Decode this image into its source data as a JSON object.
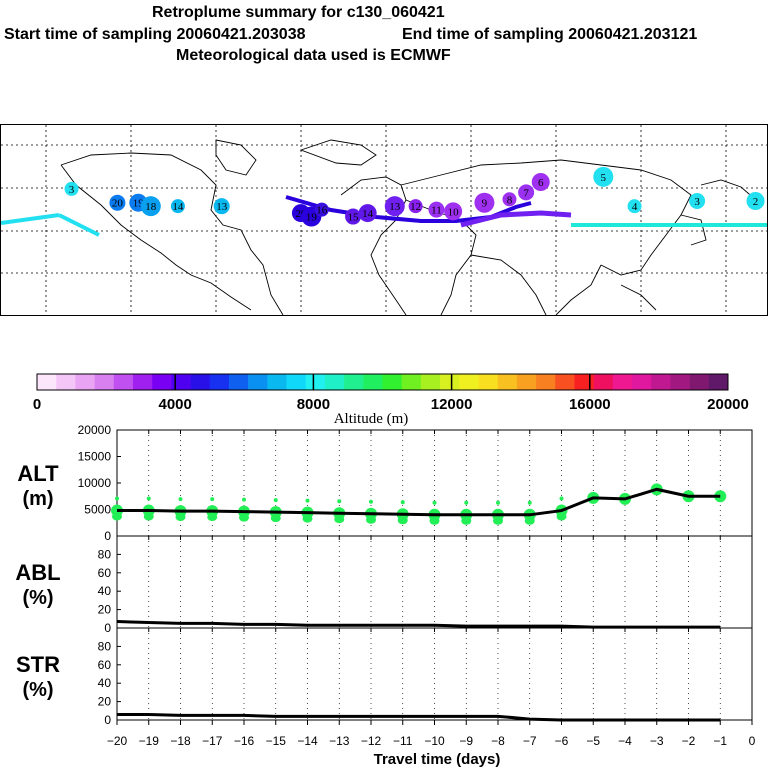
{
  "title": {
    "line1": "Retroplume summary for c130_060421",
    "start_label": "Start time of sampling 20060421.203038",
    "end_label": "End time of sampling 20060421.203121",
    "line3": "Meteorological data used is ECMWF"
  },
  "map": {
    "region": "Northern hemisphere world map with retroplume trajectory",
    "trajectory_main_color": "#4b00ff",
    "trajectory_east_color": "#20e8d8",
    "markers": [
      {
        "label": "3",
        "lon": -150,
        "lat": 38,
        "color": "#22e0f0"
      },
      {
        "label": "20",
        "lon": -128,
        "lat": 30,
        "color": "#0a7cf0"
      },
      {
        "label": "19",
        "lon": -118,
        "lat": 30,
        "color": "#0a7cf0"
      },
      {
        "label": "18",
        "lon": -112,
        "lat": 28,
        "color": "#0aa0f0"
      },
      {
        "label": "14",
        "lon": -99,
        "lat": 28,
        "color": "#0ab8f0"
      },
      {
        "label": "13",
        "lon": -78,
        "lat": 28,
        "color": "#0ab8f0"
      },
      {
        "label": "20",
        "lon": -40,
        "lat": 24,
        "color": "#2a00dd"
      },
      {
        "label": "19",
        "lon": -35,
        "lat": 22,
        "color": "#2a00dd"
      },
      {
        "label": "16",
        "lon": -30,
        "lat": 26,
        "color": "#3a10e0"
      },
      {
        "label": "15",
        "lon": -15,
        "lat": 22,
        "color": "#6018e8"
      },
      {
        "label": "14",
        "lon": -8,
        "lat": 24,
        "color": "#6018e8"
      },
      {
        "label": "13",
        "lon": 5,
        "lat": 28,
        "color": "#7020f0"
      },
      {
        "label": "12",
        "lon": 15,
        "lat": 28,
        "color": "#8a20f0"
      },
      {
        "label": "11",
        "lon": 25,
        "lat": 26,
        "color": "#9a30f0"
      },
      {
        "label": "10",
        "lon": 33,
        "lat": 25,
        "color": "#a030f0"
      },
      {
        "label": "9",
        "lon": 48,
        "lat": 30,
        "color": "#a030f0"
      },
      {
        "label": "8",
        "lon": 60,
        "lat": 32,
        "color": "#a030f0"
      },
      {
        "label": "7",
        "lon": 68,
        "lat": 36,
        "color": "#9a30f0"
      },
      {
        "label": "6",
        "lon": 75,
        "lat": 42,
        "color": "#a030f0"
      },
      {
        "label": "5",
        "lon": 105,
        "lat": 45,
        "color": "#22e0f0"
      },
      {
        "label": "4",
        "lon": 120,
        "lat": 28,
        "color": "#22e0f0"
      },
      {
        "label": "3",
        "lon": 150,
        "lat": 31,
        "color": "#22e0f0"
      },
      {
        "label": "2",
        "lon": 178,
        "lat": 31,
        "color": "#22e0f0"
      }
    ]
  },
  "colorbar": {
    "colors": [
      "#fce6fc",
      "#f4c6f8",
      "#eaa4f4",
      "#d880f0",
      "#c050f0",
      "#a020f0",
      "#7a00f4",
      "#5000f0",
      "#2a10e8",
      "#1830f0",
      "#1060f0",
      "#0a90f0",
      "#0ab8f0",
      "#10d8f8",
      "#20f0f0",
      "#20f0c8",
      "#20f090",
      "#20f060",
      "#30f030",
      "#70f020",
      "#a8f020",
      "#d8f020",
      "#f0f020",
      "#f8e020",
      "#f8c020",
      "#f8a020",
      "#f88020",
      "#f85020",
      "#f82020",
      "#f01060",
      "#f01890",
      "#e018a0",
      "#c01890",
      "#a01880",
      "#801870",
      "#601868"
    ],
    "ticks": [
      "0",
      "4000",
      "8000",
      "12000",
      "16000",
      "20000"
    ],
    "label": "Altitude (m)"
  },
  "chart_data": [
    {
      "type": "line",
      "name": "ALT",
      "ylabel": "ALT\n(m)",
      "ylabel_line1": "ALT",
      "ylabel_line2": "(m)",
      "ylim": [
        0,
        20000
      ],
      "yticks": [
        "0",
        "5000",
        "10000",
        "15000",
        "20000"
      ],
      "x": [
        -20,
        -19,
        -18,
        -17,
        -16,
        -15,
        -14,
        -13,
        -12,
        -11,
        -10,
        -9,
        -8,
        -7,
        -6,
        -5,
        -4,
        -3,
        -2,
        -1
      ],
      "values": [
        4800,
        4800,
        4700,
        4700,
        4600,
        4500,
        4400,
        4300,
        4200,
        4100,
        4000,
        4000,
        4000,
        4000,
        4800,
        7200,
        7000,
        8800,
        7500,
        7500
      ],
      "scatter_color": "#22ee55"
    },
    {
      "type": "line",
      "name": "ABL",
      "ylabel_line1": "ABL",
      "ylabel_line2": "(%)",
      "ylim": [
        0,
        100
      ],
      "yticks": [
        "0",
        "20",
        "40",
        "60",
        "80"
      ],
      "x": [
        -20,
        -19,
        -18,
        -17,
        -16,
        -15,
        -14,
        -13,
        -12,
        -11,
        -10,
        -9,
        -8,
        -7,
        -6,
        -5,
        -4,
        -3,
        -2,
        -1
      ],
      "values": [
        7,
        6,
        5,
        5,
        4,
        4,
        3,
        3,
        3,
        3,
        3,
        2,
        2,
        2,
        2,
        1,
        1,
        1,
        1,
        1
      ]
    },
    {
      "type": "line",
      "name": "STR",
      "ylabel_line1": "STR",
      "ylabel_line2": "(%)",
      "ylim": [
        0,
        100
      ],
      "yticks": [
        "0",
        "20",
        "40",
        "60",
        "80"
      ],
      "x": [
        -20,
        -19,
        -18,
        -17,
        -16,
        -15,
        -14,
        -13,
        -12,
        -11,
        -10,
        -9,
        -8,
        -7,
        -6,
        -5,
        -4,
        -3,
        -2,
        -1
      ],
      "values": [
        6,
        6,
        5,
        5,
        5,
        4,
        4,
        4,
        4,
        4,
        4,
        4,
        4,
        1,
        0,
        0,
        0,
        0,
        0,
        0
      ]
    }
  ],
  "xaxis": {
    "ticks": [
      "−20",
      "−19",
      "−18",
      "−17",
      "−16",
      "−15",
      "−14",
      "−13",
      "−12",
      "−11",
      "−10",
      "−9",
      "−8",
      "−7",
      "−6",
      "−5",
      "−4",
      "−3",
      "−2",
      "−1",
      "0"
    ],
    "label": "Travel time (days)"
  }
}
